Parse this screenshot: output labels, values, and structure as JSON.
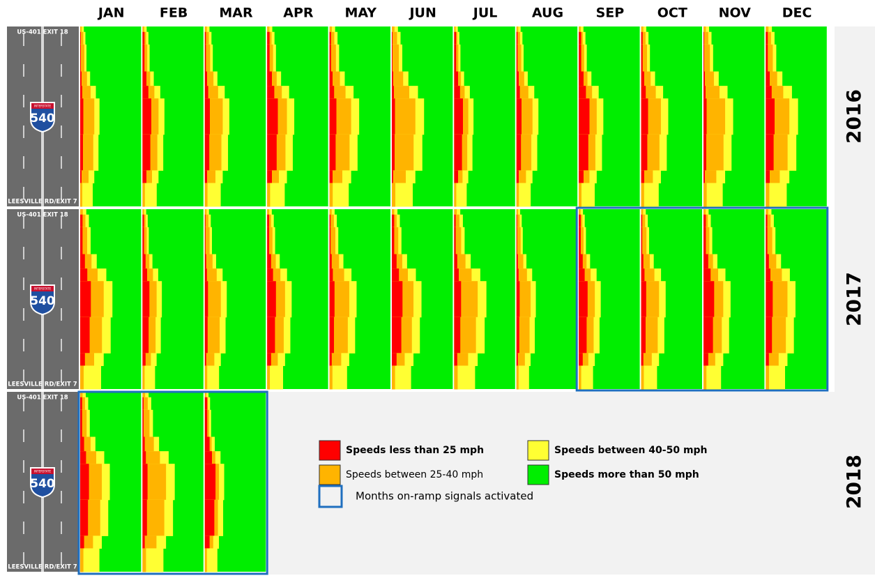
{
  "months": [
    "JAN",
    "FEB",
    "MAR",
    "APR",
    "MAY",
    "JUN",
    "JUL",
    "AUG",
    "SEP",
    "OCT",
    "NOV",
    "DEC"
  ],
  "rows": [
    {
      "year": "2016",
      "top_label": "US-401 EXIT 18",
      "bottom_label": "LEESVILLE RD/EXIT 7",
      "shield_top": "INTERSTATE",
      "shield": "540"
    },
    {
      "year": "2017",
      "top_label": "US-401 EXIT 18",
      "bottom_label": "LEESVILLE RD/EXIT 7",
      "shield_top": "INTERSTATE",
      "shield": "540"
    },
    {
      "year": "2018",
      "top_label": "US-401 EXIT 18",
      "bottom_label": "LEESVILLE RD/EXIT 7",
      "shield_top": "INTERSTATE",
      "shield": "540"
    }
  ],
  "legend": [
    {
      "label": "Speeds less than 25 mph",
      "color": "#ff0000"
    },
    {
      "label": "Speeds between 25-40 mph",
      "color": "#ffb400"
    },
    {
      "label": "Speeds between 40-50 mph",
      "color": "#ffff33"
    },
    {
      "label": "Speeds more than 50 mph",
      "color": "#00ee00"
    }
  ],
  "signal_legend": {
    "label": "Months on-ramp signals activated",
    "color": "#1f6fbf"
  }
}
